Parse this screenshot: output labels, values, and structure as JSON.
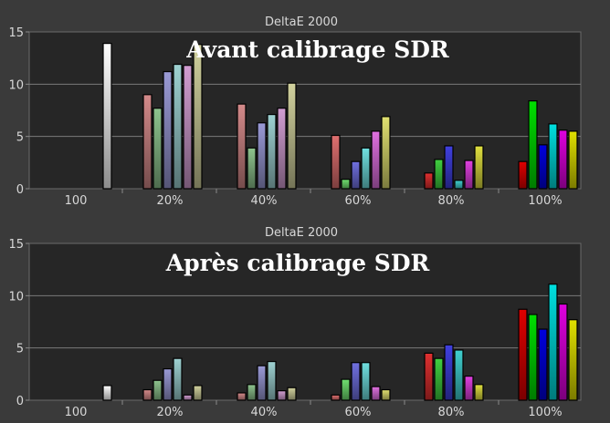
{
  "chart_data": [
    {
      "type": "bar",
      "title": "DeltaE 2000",
      "overlay_title": "Avant calibrage SDR",
      "categories": [
        "100",
        "20%",
        "40%",
        "60%",
        "80%",
        "100%"
      ],
      "ylim": [
        0,
        15
      ],
      "yticks": [
        "0",
        "5",
        "10",
        "15"
      ],
      "grid": true,
      "groups": [
        {
          "values": [
            13.9
          ],
          "colors": [
            "#ffffff"
          ]
        },
        {
          "values": [
            9.0,
            7.7,
            11.2,
            11.9,
            11.8,
            13.8
          ],
          "colors": [
            "#d48a8a",
            "#8ec48e",
            "#9a9ad6",
            "#9ed2d2",
            "#d29ed2",
            "#d2d29e"
          ]
        },
        {
          "values": [
            8.1,
            3.9,
            6.3,
            7.1,
            7.7,
            10.1
          ],
          "colors": [
            "#d48a8a",
            "#8ec48e",
            "#9a9ad6",
            "#9ed2d2",
            "#d29ed2",
            "#d2d29e"
          ]
        },
        {
          "values": [
            5.1,
            0.9,
            2.6,
            3.9,
            5.5,
            6.9
          ],
          "colors": [
            "#e07070",
            "#70e070",
            "#7070e0",
            "#70e0e0",
            "#e070e0",
            "#e0e070"
          ]
        },
        {
          "values": [
            1.5,
            2.8,
            4.1,
            0.8,
            2.7,
            4.1
          ],
          "colors": [
            "#e03030",
            "#40d040",
            "#4040e0",
            "#40d0d0",
            "#e040e0",
            "#e0e040"
          ]
        },
        {
          "values": [
            2.6,
            8.4,
            4.2,
            6.2,
            5.6,
            5.5
          ],
          "colors": [
            "#e00000",
            "#00e000",
            "#0000e0",
            "#00e0e0",
            "#e000e0",
            "#e0e000"
          ]
        }
      ]
    },
    {
      "type": "bar",
      "title": "DeltaE 2000",
      "overlay_title": "Après calibrage SDR",
      "categories": [
        "100",
        "20%",
        "40%",
        "60%",
        "80%",
        "100%"
      ],
      "ylim": [
        0,
        15
      ],
      "yticks": [
        "0",
        "5",
        "10",
        "15"
      ],
      "grid": true,
      "groups": [
        {
          "values": [
            1.4
          ],
          "colors": [
            "#ffffff"
          ]
        },
        {
          "values": [
            1.0,
            1.9,
            3.0,
            4.0,
            0.5,
            1.4
          ],
          "colors": [
            "#d48a8a",
            "#8ec48e",
            "#9a9ad6",
            "#9ed2d2",
            "#d29ed2",
            "#d2d29e"
          ]
        },
        {
          "values": [
            0.7,
            1.5,
            3.3,
            3.7,
            0.9,
            1.2
          ],
          "colors": [
            "#d48a8a",
            "#8ec48e",
            "#9a9ad6",
            "#9ed2d2",
            "#d29ed2",
            "#d2d29e"
          ]
        },
        {
          "values": [
            0.5,
            2.0,
            3.6,
            3.6,
            1.3,
            1.0
          ],
          "colors": [
            "#e07070",
            "#70e070",
            "#7070e0",
            "#70e0e0",
            "#e070e0",
            "#e0e070"
          ]
        },
        {
          "values": [
            4.5,
            4.0,
            5.3,
            4.8,
            2.3,
            1.5
          ],
          "colors": [
            "#e03030",
            "#40d040",
            "#4040e0",
            "#40d0d0",
            "#e040e0",
            "#e0e040"
          ]
        },
        {
          "values": [
            8.7,
            8.2,
            6.8,
            11.1,
            9.2,
            7.7
          ],
          "colors": [
            "#e00000",
            "#00e000",
            "#0000e0",
            "#00e0e0",
            "#e000e0",
            "#e0e000"
          ]
        }
      ]
    }
  ]
}
